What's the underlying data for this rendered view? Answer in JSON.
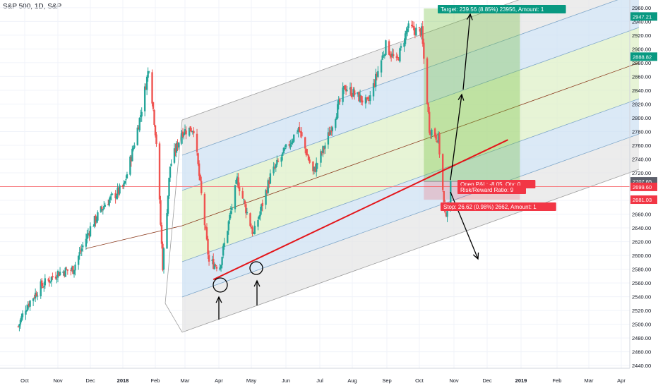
{
  "header": {
    "symbol_title": "S&P 500, 1D, S&P"
  },
  "chart_data": {
    "type": "candlestick",
    "title": "S&P 500, 1D, S&P",
    "x_tick_labels": [
      "Oct",
      "Nov",
      "Dec",
      "2018",
      "Feb",
      "Mar",
      "Apr",
      "May",
      "Jun",
      "Jul",
      "Aug",
      "Sep",
      "Oct",
      "Nov",
      "Dec",
      "2019",
      "Feb",
      "Mar",
      "Apr"
    ],
    "y_tick_labels": [
      2440,
      2460,
      2480,
      2500,
      2520,
      2540,
      2560,
      2580,
      2600,
      2620,
      2640,
      2660,
      2680,
      2700,
      2720,
      2740,
      2760,
      2780,
      2800,
      2820,
      2840,
      2860,
      2880,
      2900,
      2920,
      2940,
      2960
    ],
    "ylim": [
      2433,
      2965
    ],
    "axis_side": "right",
    "grid": true,
    "price_path": [
      [
        "2017-09-25",
        2497
      ],
      [
        "2017-10-02",
        2525
      ],
      [
        "2017-10-16",
        2555
      ],
      [
        "2017-11-01",
        2575
      ],
      [
        "2017-11-15",
        2580
      ],
      [
        "2017-12-01",
        2640
      ],
      [
        "2017-12-15",
        2675
      ],
      [
        "2018-01-02",
        2700
      ],
      [
        "2018-01-10",
        2750
      ],
      [
        "2018-01-18",
        2805
      ],
      [
        "2018-01-26",
        2875
      ],
      [
        "2018-02-02",
        2765
      ],
      [
        "2018-02-08",
        2585
      ],
      [
        "2018-02-15",
        2730
      ],
      [
        "2018-02-26",
        2780
      ],
      [
        "2018-03-09",
        2785
      ],
      [
        "2018-03-23",
        2590
      ],
      [
        "2018-04-02",
        2585
      ],
      [
        "2018-04-18",
        2710
      ],
      [
        "2018-05-03",
        2630
      ],
      [
        "2018-05-18",
        2715
      ],
      [
        "2018-06-12",
        2785
      ],
      [
        "2018-06-25",
        2720
      ],
      [
        "2018-07-06",
        2760
      ],
      [
        "2018-07-25",
        2845
      ],
      [
        "2018-08-15",
        2820
      ],
      [
        "2018-08-31",
        2905
      ],
      [
        "2018-09-10",
        2880
      ],
      [
        "2018-09-20",
        2930
      ],
      [
        "2018-10-03",
        2925
      ],
      [
        "2018-10-10",
        2785
      ],
      [
        "2018-10-18",
        2770
      ],
      [
        "2018-10-24",
        2655
      ],
      [
        "2018-10-29",
        2700
      ]
    ],
    "horizontal_line": {
      "value": 2700,
      "color": "#f77c80"
    },
    "pitchfork": {
      "median_color": "#8b3a1d",
      "band_colors": [
        "#e5e5e5",
        "#cfe2f3",
        "#dff0c8",
        "#dff0c8",
        "#cfe2f3",
        "#e5e5e5"
      ],
      "pivot": [
        "2017-11-27",
        2610
      ]
    },
    "trendline": {
      "color": "#e3151a",
      "from": [
        "2018-03-27",
        2565
      ],
      "to": [
        "2018-12-20",
        2768
      ]
    },
    "position": {
      "entry_label": "Open P&L: -8.05, Qty: 0",
      "rr_label": "Risk/Reward Ratio: 9",
      "target_label": "Target: 239.56 (8.85%) 23956, Amount: 1",
      "stop_label": "Stop: 26.62 (0.98%) 2662, Amount: 1",
      "target_color": "#089981",
      "stop_color": "#f23645"
    },
    "price_badges": [
      {
        "value": "2947.21",
        "color": "#089981"
      },
      {
        "value": "2888.82",
        "color": "#089981"
      },
      {
        "value": "2707.65",
        "color": "#5d606b"
      },
      {
        "value": "2699.60",
        "color": "#f23645"
      },
      {
        "value": "2681.03",
        "color": "#f23645"
      }
    ],
    "colors": {
      "up": "#26a69a",
      "down": "#ef5350"
    }
  }
}
